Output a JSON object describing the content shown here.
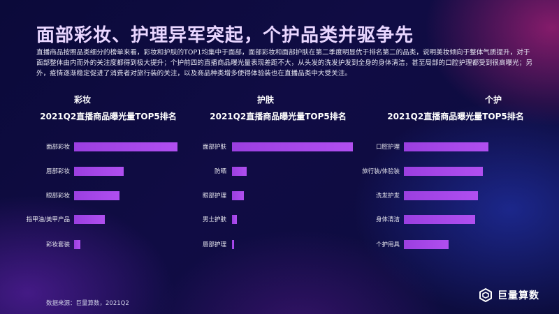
{
  "header": {
    "title": "面部彩妆、护理异军突起，个护品类并驱争先",
    "description": "直播商品按照品类细分的榜单来看，彩妆和护肤的TOP1均集中于面部，面部彩妆和面部护肤在第二季度明显优于排名第二的品类，说明美妆倾向于整体气质提升，对于面部整体由内而外的关注度都得到极大提升；个护前四的直播商品曝光量表现差距不大，从头发的洗发护发到全身的身体清洁，甚至局部的口腔护理都受到很高曝光；另外，疫情逐渐稳定促进了消费者对旅行装的关注，以及商品种类增多使得体验装也在直播品类中大受关注。"
  },
  "footer": {
    "source": "数据来源：巨量算数，2021Q2",
    "brand": "巨量算数",
    "brand_icon": "juliang-logo-icon"
  },
  "colors": {
    "bar": "#a847ea",
    "title": "#e9d6ff"
  },
  "chart_data": [
    {
      "type": "bar",
      "orientation": "horizontal",
      "label": "彩妆",
      "title": "2021Q2直播商品曝光量TOP5排名",
      "categories": [
        "面部彩妆",
        "唇部彩妆",
        "眼部彩妆",
        "指甲油/美甲产品",
        "彩妆套装"
      ],
      "values": [
        100,
        48,
        44,
        30,
        6
      ],
      "grid": false,
      "legend": "none"
    },
    {
      "type": "bar",
      "orientation": "horizontal",
      "label": "护肤",
      "title": "2021Q2直播商品曝光量TOP5排名",
      "categories": [
        "面部护肤",
        "防晒",
        "眼部护理",
        "男士护肤",
        "唇部护理"
      ],
      "values": [
        100,
        12,
        10,
        4,
        2
      ],
      "grid": false,
      "legend": "none"
    },
    {
      "type": "bar",
      "orientation": "horizontal",
      "label": "个护",
      "title": "2021Q2直播商品曝光量TOP5排名",
      "categories": [
        "口腔护理",
        "旅行装/体验装",
        "洗发护发",
        "身体清洁",
        "个护用具"
      ],
      "values": [
        100,
        93,
        88,
        84,
        53
      ],
      "grid": false,
      "legend": "none"
    }
  ]
}
